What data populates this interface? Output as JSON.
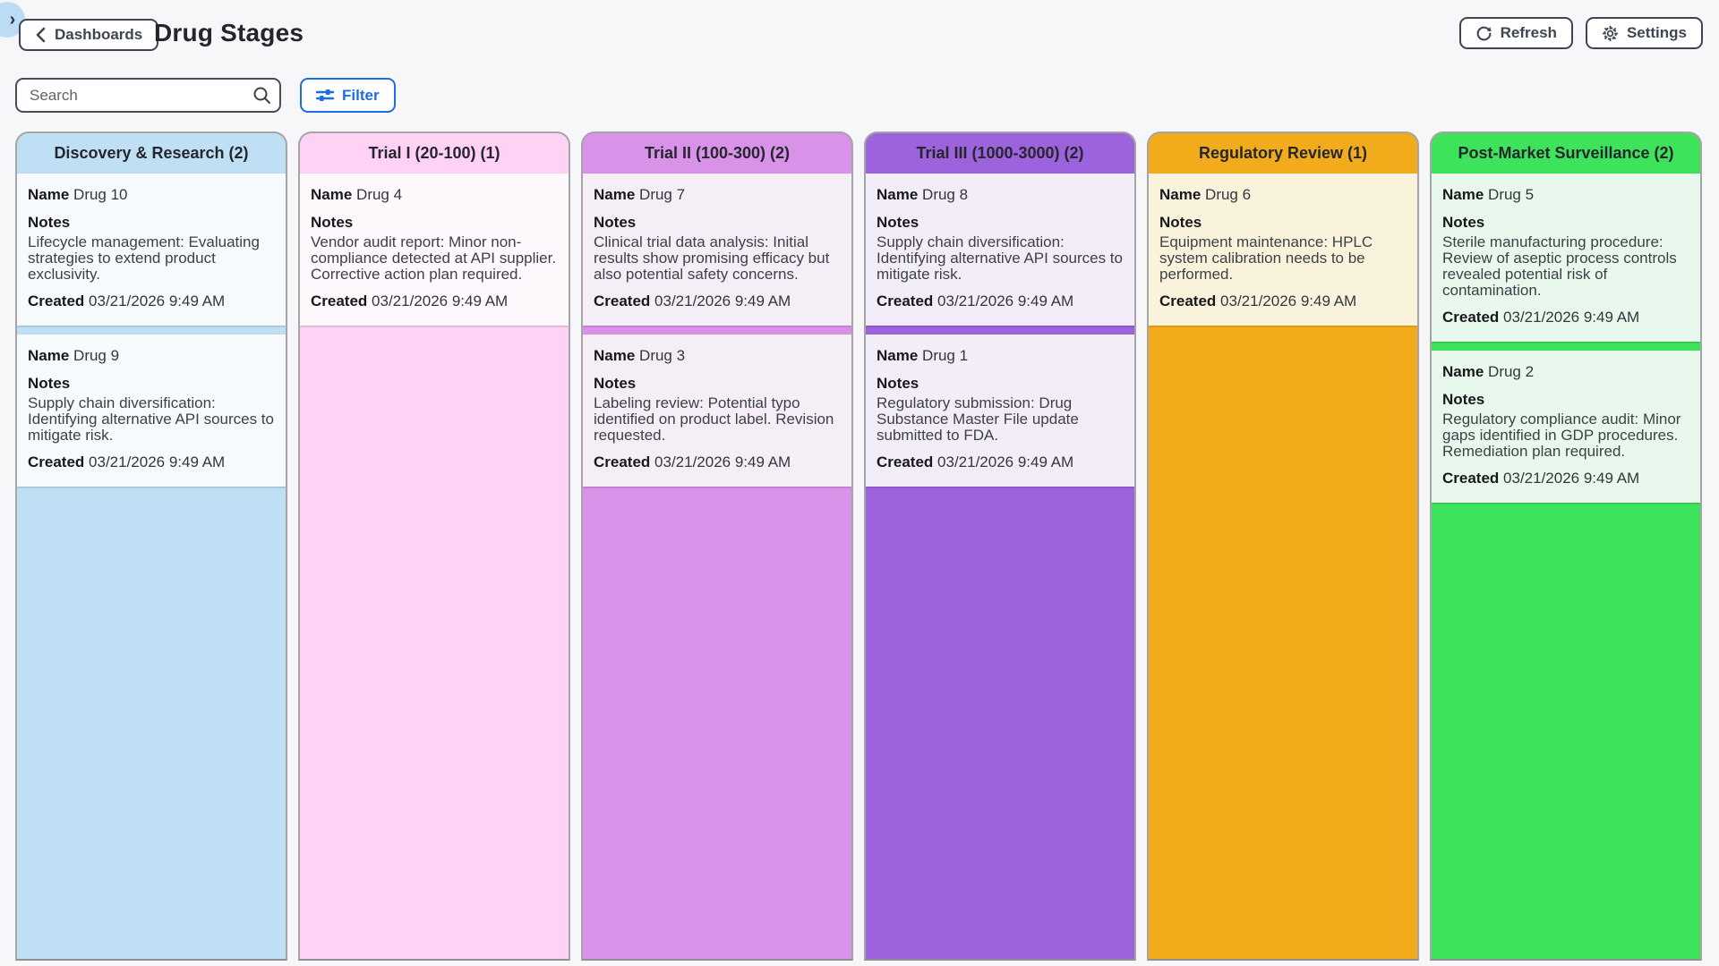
{
  "header": {
    "back_label": "Dashboards",
    "title": "Drug Stages",
    "refresh_label": "Refresh",
    "settings_label": "Settings"
  },
  "toolbar": {
    "search_placeholder": "Search",
    "filter_label": "Filter"
  },
  "icons": {
    "expander": "chevron-right-icon",
    "back": "chevron-left-icon",
    "refresh": "refresh-icon",
    "settings": "gear-icon",
    "search": "magnifier-icon",
    "filter": "sliders-icon"
  },
  "labels": {
    "name": "Name",
    "notes": "Notes",
    "created": "Created"
  },
  "colors": {
    "page_bg": "#f7f7f9",
    "accent_blue": "#1b6fe0",
    "column_border": "#a5a5a8"
  },
  "board": {
    "columns": [
      {
        "title": "Discovery & Research (2)",
        "color": "#bfdff5",
        "card_bg": "#f7fafd",
        "cards": [
          {
            "name": "Drug 10",
            "notes": "Lifecycle management: Evaluating strategies to extend product exclusivity.",
            "created": "03/21/2026 9:49 AM"
          },
          {
            "name": "Drug 9",
            "notes": "Supply chain diversification: Identifying alternative API sources to mitigate risk.",
            "created": "03/21/2026 9:49 AM"
          }
        ]
      },
      {
        "title": "Trial I (20-100) (1)",
        "color": "#ffd1f5",
        "card_bg": "#fdf8fc",
        "cards": [
          {
            "name": "Drug 4",
            "notes": "Vendor audit report: Minor non-compliance detected at API supplier. Corrective action plan required.",
            "created": "03/21/2026 9:49 AM"
          }
        ]
      },
      {
        "title": "Trial II (100-300) (2)",
        "color": "#d892e8",
        "card_bg": "#f5eef7",
        "cards": [
          {
            "name": "Drug 7",
            "notes": "Clinical trial data analysis: Initial results show promising efficacy but also potential safety concerns.",
            "created": "03/21/2026 9:49 AM"
          },
          {
            "name": "Drug 3",
            "notes": "Labeling review: Potential typo identified on product label. Revision requested.",
            "created": "03/21/2026 9:49 AM"
          }
        ]
      },
      {
        "title": "Trial III (1000-3000) (2)",
        "color": "#9c63dd",
        "card_bg": "#f3edfa",
        "cards": [
          {
            "name": "Drug 8",
            "notes": "Supply chain diversification: Identifying alternative API sources to mitigate risk.",
            "created": "03/21/2026 9:49 AM"
          },
          {
            "name": "Drug 1",
            "notes": "Regulatory submission: Drug Substance Master File update submitted to FDA.",
            "created": "03/21/2026 9:49 AM"
          }
        ]
      },
      {
        "title": "Regulatory Review (1)",
        "color": "#f2ac1b",
        "card_bg": "#faf3dc",
        "cards": [
          {
            "name": "Drug 6",
            "notes": "Equipment maintenance: HPLC system calibration needs to be performed.",
            "created": "03/21/2026 9:49 AM"
          }
        ]
      },
      {
        "title": "Post-Market Surveillance (2)",
        "color": "#3ee35c",
        "card_bg": "#e9f8ec",
        "cards": [
          {
            "name": "Drug 5",
            "notes": "Sterile manufacturing procedure: Review of aseptic process controls revealed potential risk of contamination.",
            "created": "03/21/2026 9:49 AM"
          },
          {
            "name": "Drug 2",
            "notes": "Regulatory compliance audit: Minor gaps identified in GDP procedures. Remediation plan required.",
            "created": "03/21/2026 9:49 AM"
          }
        ]
      }
    ]
  }
}
